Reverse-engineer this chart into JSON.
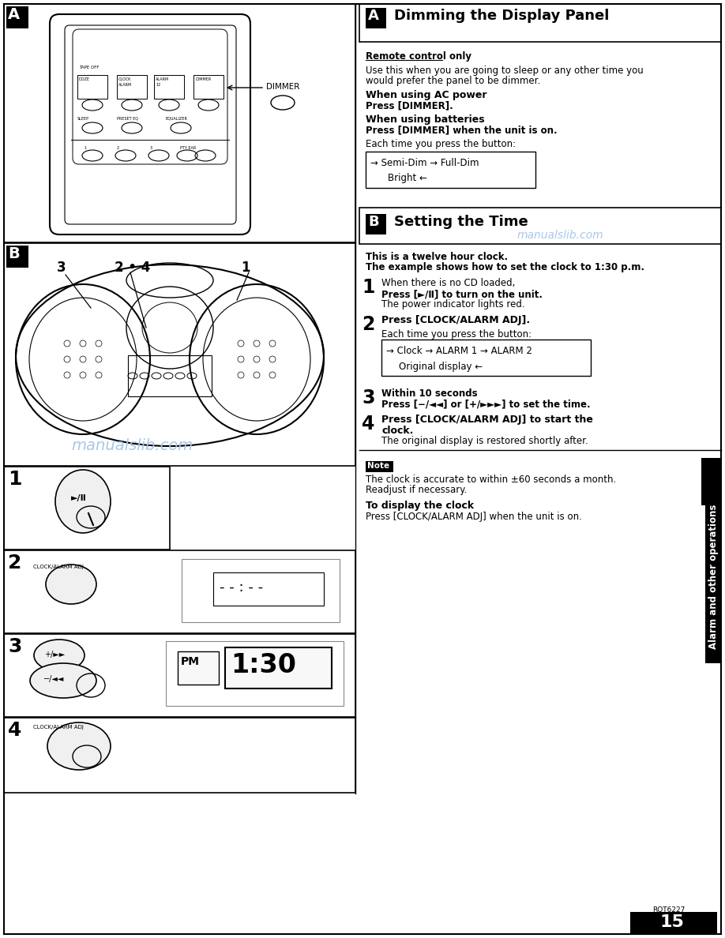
{
  "page_width": 9.18,
  "page_height": 11.88,
  "bg_color": "#ffffff",
  "watermark_color": "#a8c8e8",
  "section_A_title": "Dimming the Display Panel",
  "section_B_title": "Setting the Time",
  "remote_control_only": "Remote control only",
  "dimmer_intro_1": "Use this when you are going to sleep or any other time you",
  "dimmer_intro_2": "would prefer the panel to be dimmer.",
  "ac_power_head": "When using AC power",
  "ac_power_body": "Press [DIMMER].",
  "batteries_head": "When using batteries",
  "batteries_body": "Press [DIMMER] when the unit is on.",
  "each_time_dimmer": "Each time you press the button:",
  "dim_cycle": "→ Semi-Dim → Full-Dim",
  "bright": "Bright ←",
  "twelve_hour": "This is a twelve hour clock.",
  "example_shows": "The example shows how to set the clock to 1:30 p.m.",
  "step1_intro": "When there is no CD loaded,",
  "step1_bold": "Press [►/Ⅱ] to turn on the unit.",
  "step1_body": "The power indicator lights red.",
  "step2_head": "Press [CLOCK/ALARM ADJ].",
  "step2_intro": "Each time you press the button:",
  "clock_cycle": "→ Clock → ALARM 1 → ALARM 2",
  "original_display": "Original display ←",
  "step3_head": "Within 10 seconds",
  "step3_bold": "Press [−/◄◄] or [+/►►►] to set the time.",
  "step4_head1": "Press [CLOCK/ALARM ADJ] to start the",
  "step4_head2": "clock.",
  "step4_body": "The original display is restored shortly after.",
  "note_text1": "The clock is accurate to within ±60 seconds a month.",
  "note_text2": "Readjust if necessary.",
  "display_clock_head": "To display the clock",
  "display_clock_body": "Press [CLOCK/ALARM ADJ] when the unit is on.",
  "sidebar_text": "Alarm and other operations",
  "page_number": "15",
  "rqt": "RQT6227"
}
